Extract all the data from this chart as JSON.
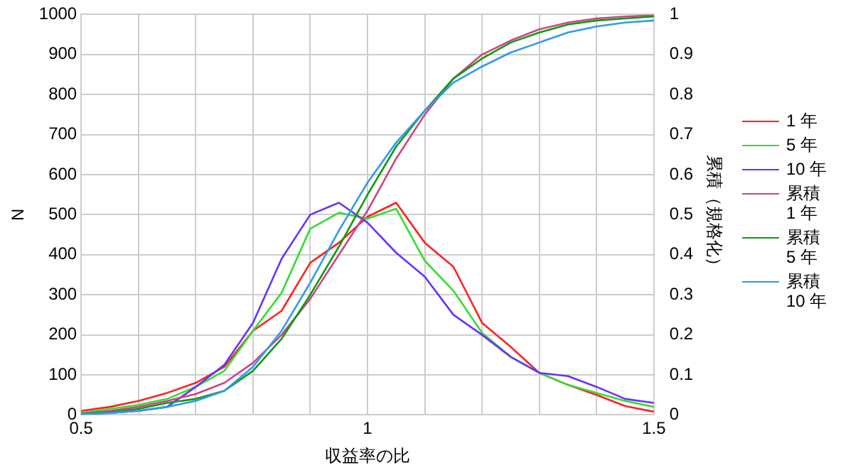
{
  "chart_data": {
    "type": "line",
    "xlabel": "収益率の比",
    "ylabel": "N",
    "y2label": "累積（規格化）",
    "x": [
      0.5,
      0.55,
      0.6,
      0.65,
      0.7,
      0.75,
      0.8,
      0.85,
      0.9,
      0.95,
      1.0,
      1.05,
      1.1,
      1.15,
      1.2,
      1.25,
      1.3,
      1.35,
      1.4,
      1.45,
      1.5
    ],
    "series": [
      {
        "name": "1 年",
        "color": "#ff2222",
        "values": [
          10,
          20,
          35,
          55,
          80,
          120,
          210,
          260,
          380,
          430,
          495,
          530,
          430,
          370,
          230,
          170,
          105,
          75,
          50,
          22,
          8
        ]
      },
      {
        "name": "5 年",
        "color": "#33dd33",
        "values": [
          5,
          15,
          25,
          40,
          70,
          110,
          210,
          305,
          465,
          505,
          490,
          515,
          385,
          310,
          205,
          145,
          105,
          75,
          55,
          35,
          20
        ]
      },
      {
        "name": "10 年",
        "color": "#6633ff",
        "values": [
          2,
          5,
          10,
          20,
          70,
          125,
          230,
          390,
          500,
          530,
          480,
          405,
          345,
          250,
          200,
          145,
          105,
          97,
          70,
          40,
          30
        ]
      },
      {
        "name": "累積 1 年",
        "color": "#cc4488",
        "axis": "y2",
        "values": [
          0.003,
          0.01,
          0.02,
          0.035,
          0.052,
          0.08,
          0.13,
          0.2,
          0.29,
          0.4,
          0.51,
          0.64,
          0.75,
          0.84,
          0.9,
          0.935,
          0.963,
          0.98,
          0.99,
          0.995,
          0.998
        ]
      },
      {
        "name": "累積 5 年",
        "color": "#119911",
        "axis": "y2",
        "values": [
          0.003,
          0.007,
          0.015,
          0.03,
          0.04,
          0.06,
          0.11,
          0.19,
          0.3,
          0.42,
          0.55,
          0.67,
          0.76,
          0.84,
          0.89,
          0.93,
          0.955,
          0.975,
          0.985,
          0.99,
          0.995
        ]
      },
      {
        "name": "累積 10 年",
        "color": "#3399ee",
        "axis": "y2",
        "values": [
          0.002,
          0.005,
          0.01,
          0.02,
          0.035,
          0.06,
          0.12,
          0.21,
          0.33,
          0.46,
          0.58,
          0.68,
          0.76,
          0.83,
          0.87,
          0.905,
          0.93,
          0.955,
          0.97,
          0.98,
          0.985
        ]
      }
    ],
    "xlim": [
      0.5,
      1.5
    ],
    "xticks": [
      0.5,
      {
        "value": 0.6,
        "label": null
      },
      {
        "value": 0.7,
        "label": null
      },
      {
        "value": 0.8,
        "label": null
      },
      {
        "value": 0.9,
        "label": null
      },
      1,
      {
        "value": 1.1,
        "label": null
      },
      {
        "value": 1.2,
        "label": null
      },
      {
        "value": 1.3,
        "label": null
      },
      {
        "value": 1.4,
        "label": null
      },
      1.5
    ],
    "ylim": [
      0,
      1000
    ],
    "yticks": [
      0,
      100,
      200,
      300,
      400,
      500,
      600,
      700,
      800,
      900,
      1000
    ],
    "y2lim": [
      0,
      1
    ],
    "y2ticks": [
      0,
      0.1,
      0.2,
      0.3,
      0.4,
      0.5,
      0.6,
      0.7,
      0.8,
      0.9,
      1
    ],
    "grid": true,
    "legend": "right",
    "marker": "none",
    "line_style": "solid"
  }
}
